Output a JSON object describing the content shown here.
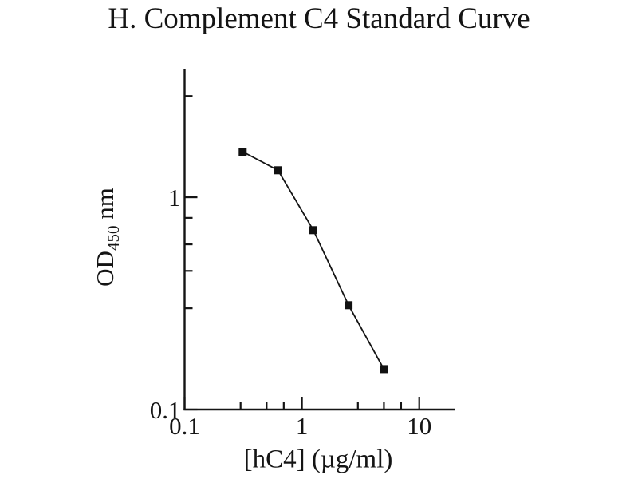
{
  "chart_data": {
    "type": "line",
    "title": "H. Complement C4 Standard Curve",
    "xlabel": "[hC4] (µg/ml)",
    "ylabel_base": "OD",
    "ylabel_sub": "450",
    "ylabel_unit": " nm",
    "xscale": "log",
    "yscale": "log",
    "xlim": [
      0.1,
      20
    ],
    "ylim": [
      0.1,
      4
    ],
    "grid": false,
    "legend": false,
    "line_color": "#141414",
    "marker": "square",
    "marker_color": "#111111",
    "x_major_ticks": [
      {
        "value": 0.1,
        "label": "0.1"
      },
      {
        "value": 1,
        "label": "1"
      },
      {
        "value": 10,
        "label": "10"
      }
    ],
    "x_minor_ticks": [
      0.3,
      0.5,
      0.7,
      3,
      5,
      7
    ],
    "y_major_ticks": [
      {
        "value": 0.1,
        "label": "0.1"
      },
      {
        "value": 1,
        "label": "1"
      }
    ],
    "y_minor_ticks": [
      0.3,
      0.45,
      0.6,
      0.8,
      3
    ],
    "series": [
      {
        "points": [
          {
            "x": 0.3125,
            "y": 1.64
          },
          {
            "x": 0.625,
            "y": 1.34
          },
          {
            "x": 1.25,
            "y": 0.7
          },
          {
            "x": 2.5,
            "y": 0.31
          },
          {
            "x": 5,
            "y": 0.155
          }
        ]
      }
    ]
  }
}
